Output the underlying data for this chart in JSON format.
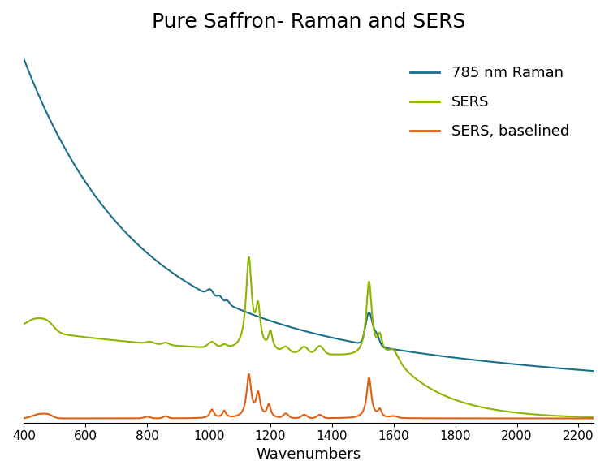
{
  "title": "Pure Saffron- Raman and SERS",
  "xlabel": "Wavenumbers",
  "ylabel": "",
  "xlim": [
    400,
    2250
  ],
  "raman_color": "#1a6f8a",
  "sers_color": "#8db500",
  "sers_base_color": "#e06010",
  "legend_labels": [
    "785 nm Raman",
    "SERS",
    "SERS, baselined"
  ],
  "background_color": "#ffffff",
  "title_fontsize": 18,
  "legend_fontsize": 13,
  "axis_fontsize": 13
}
